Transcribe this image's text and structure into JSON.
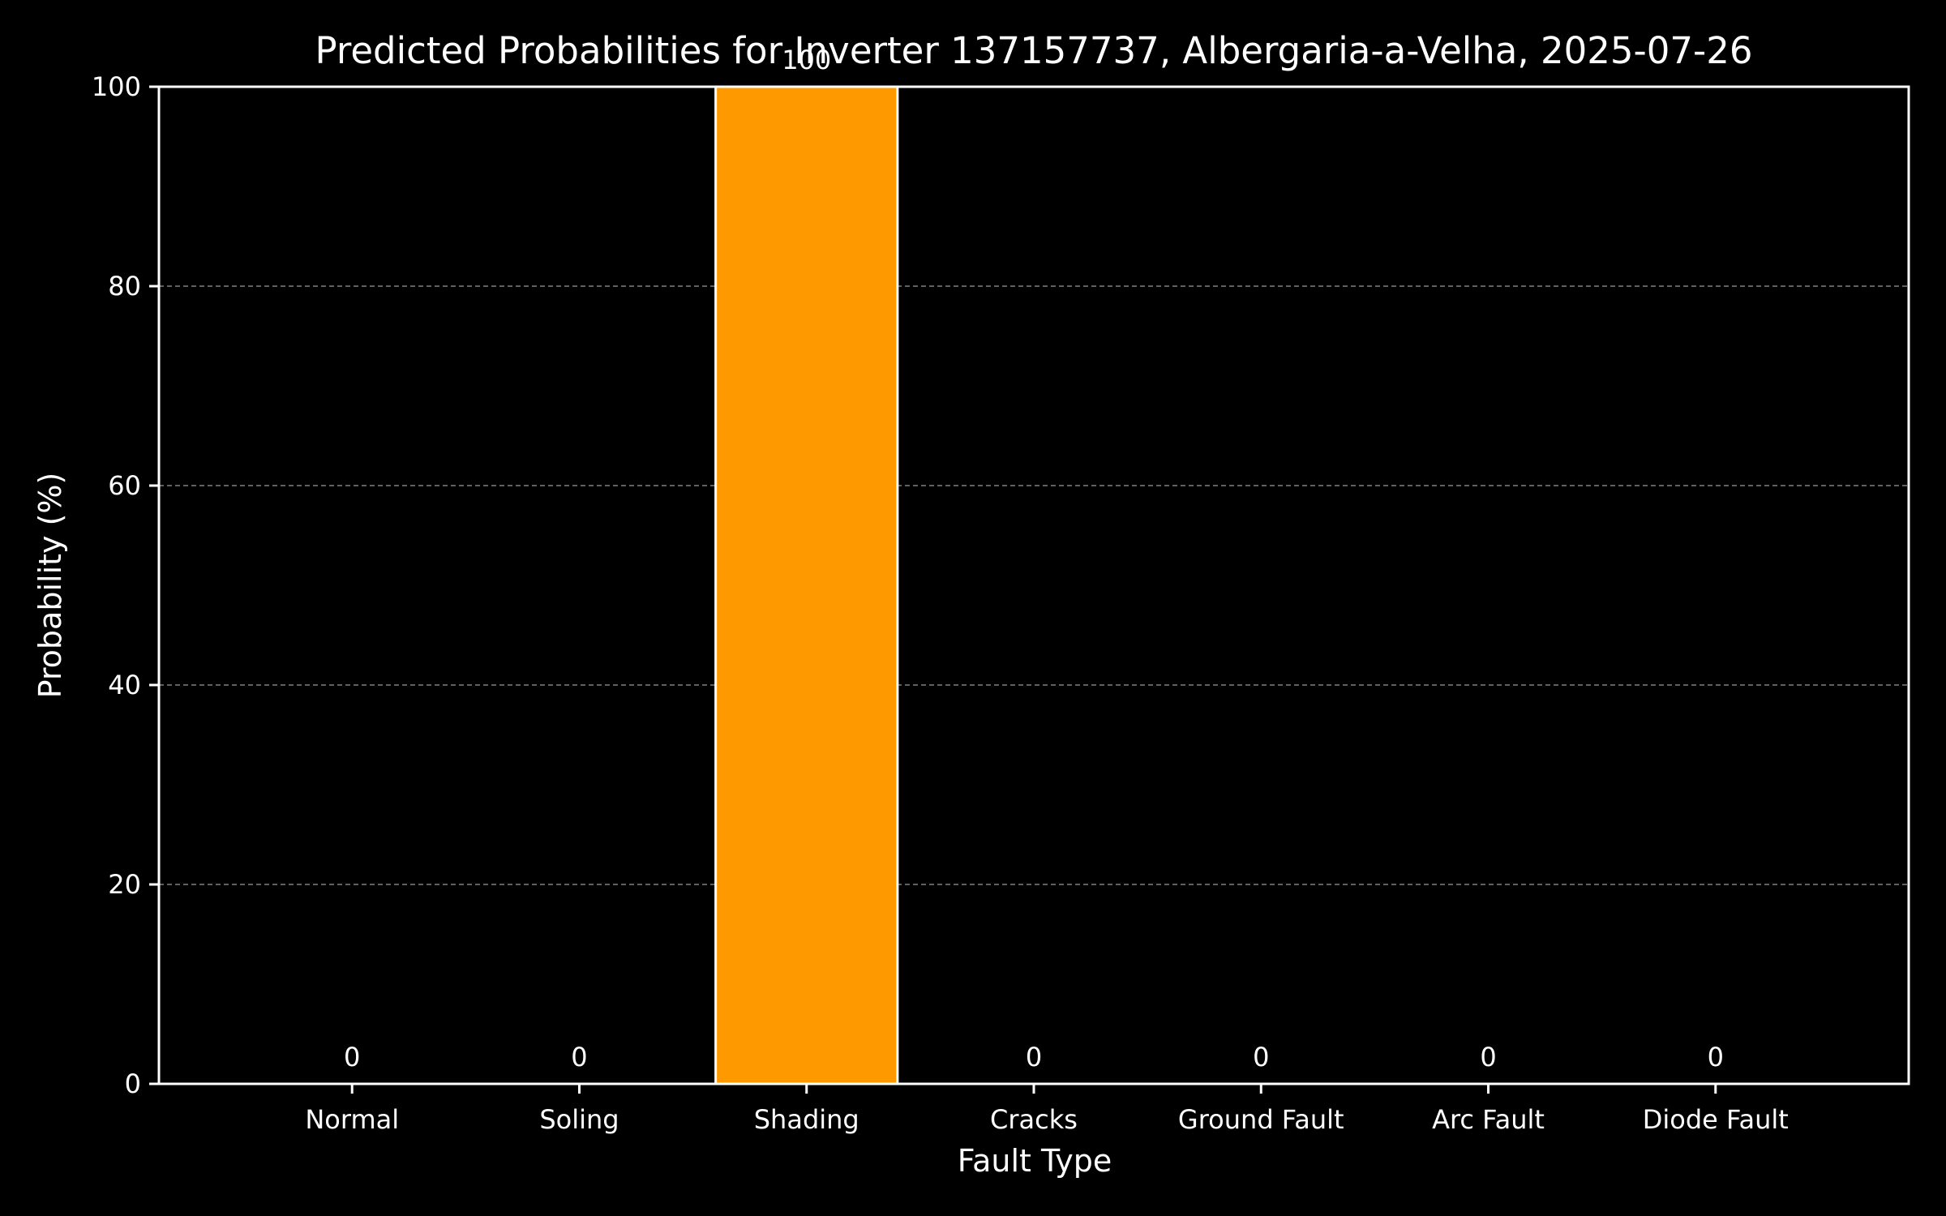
{
  "chart_data": {
    "type": "bar",
    "title": "Predicted Probabilities for Inverter 137157737, Albergaria-a-Velha, 2025-07-26",
    "xlabel": "Fault Type",
    "ylabel": "Probability (%)",
    "categories": [
      "Normal",
      "Soling",
      "Shading",
      "Cracks",
      "Ground Fault",
      "Arc Fault",
      "Diode Fault"
    ],
    "values": [
      0,
      0,
      100,
      0,
      0,
      0,
      0
    ],
    "data_labels": [
      "0",
      "0",
      "100",
      "0",
      "0",
      "0",
      "0"
    ],
    "ylim": [
      0,
      100
    ],
    "yticks": [
      0,
      20,
      40,
      60,
      80,
      100
    ],
    "grid": "y, dashed",
    "colors": {
      "background": "#000000",
      "bar": "#ff9900",
      "bar_edge": "#ffffff",
      "axis": "#ffffff",
      "grid": "#808080",
      "text": "#ffffff"
    }
  }
}
